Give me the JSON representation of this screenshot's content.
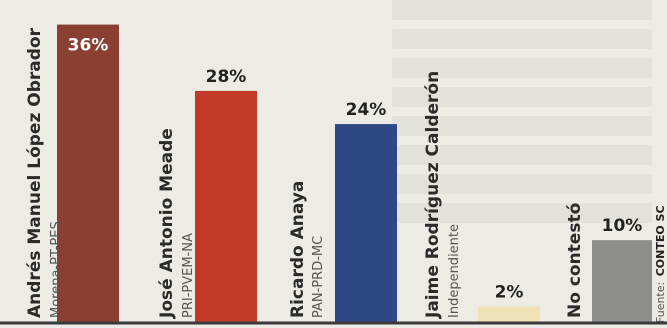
{
  "chart_data": {
    "type": "bar",
    "categories": [
      "Andrés Manuel López Obrador",
      "José Antonio Meade",
      "Ricardo Anaya",
      "Jaime Rodríguez Calderón",
      "No contestó"
    ],
    "parties": [
      "Morena-PT-PES",
      "PRI-PVEM-NA",
      "PAN-PRD-MC",
      "Independiente",
      ""
    ],
    "values": [
      36,
      28,
      24,
      2,
      10
    ],
    "value_labels": [
      "36%",
      "28%",
      "24%",
      "2%",
      "10%"
    ],
    "colors": [
      "#8b3f33",
      "#c23a27",
      "#2e4785",
      "#f0e2b7",
      "#8e8e8c"
    ],
    "ylim": [
      0,
      38
    ],
    "grid": false
  },
  "source": {
    "label": "Fuente:",
    "name": "CONTEO SC"
  }
}
